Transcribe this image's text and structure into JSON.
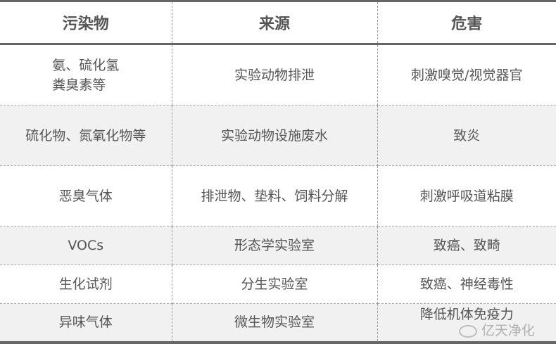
{
  "headers": [
    "污染物",
    "来源",
    "危害"
  ],
  "rows": [
    [
      "氨、硫化氢\n粪臭素等",
      "实验动物排泄",
      "刺激嗅觉/视觉器官"
    ],
    [
      "硫化物、氮氧化物等",
      "实验动物设施废水",
      "致炎"
    ],
    [
      "恶臭气体",
      "排泄物、垫料、饲料分解",
      "刺激呼吸道粘膜"
    ],
    [
      "VOCs",
      "形态学实验室",
      "致癌、致畸"
    ],
    [
      "生化试剂",
      "分生实验室",
      "致癌、神经毒性"
    ],
    [
      "异味气体",
      "微生物实验室",
      "降低机体免疫力"
    ]
  ],
  "watermark": {
    "text": "亿天净化",
    "icon": "wechat-icon"
  }
}
